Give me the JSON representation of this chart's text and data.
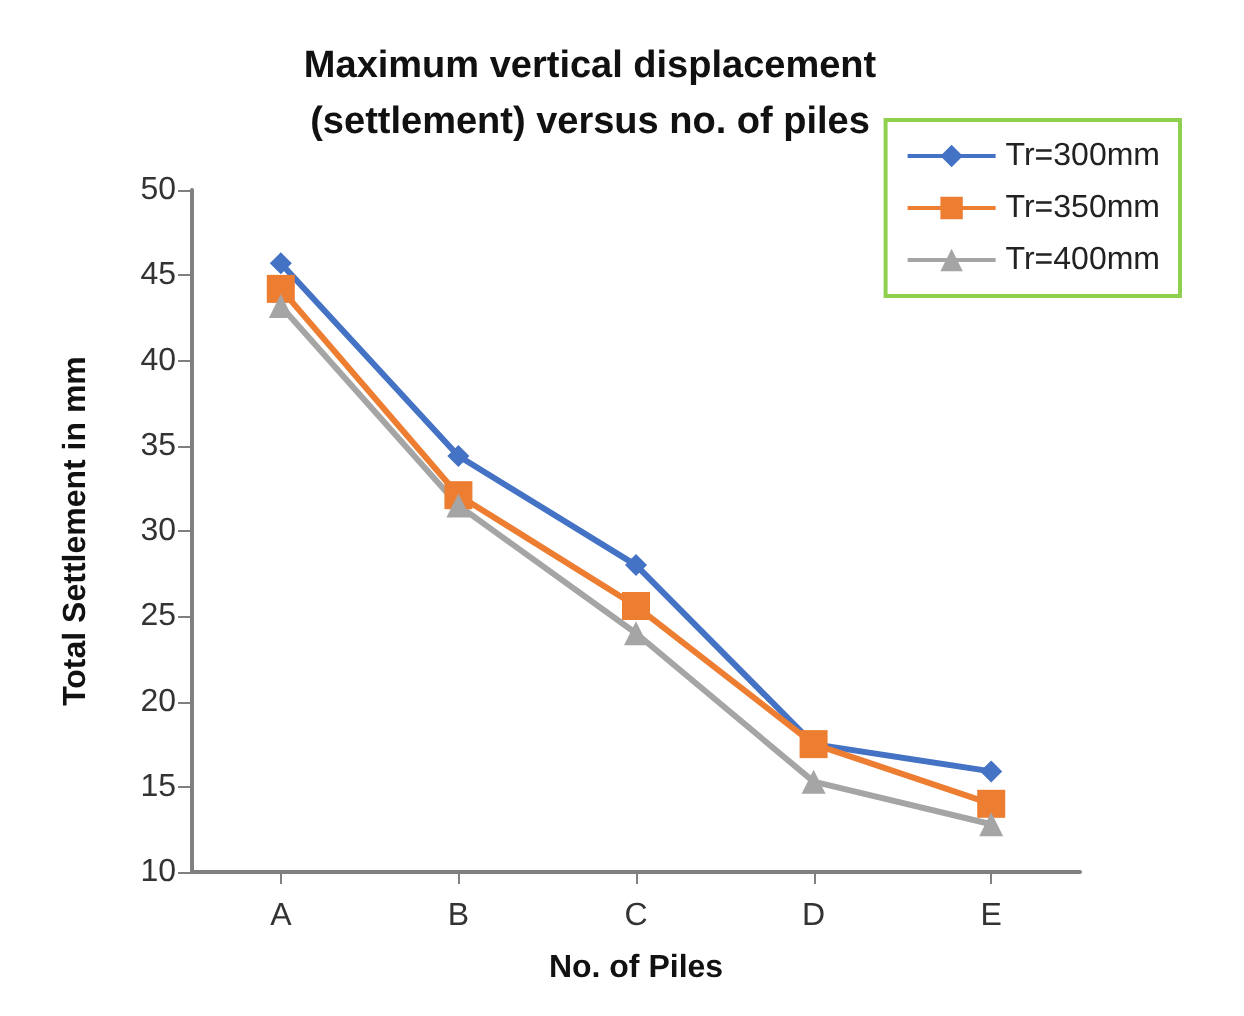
{
  "chart_data": {
    "type": "line",
    "title": "Maximum vertical displacement\n(settlement) versus no. of piles",
    "xlabel": "No. of Piles",
    "ylabel": "Total Settlement in mm",
    "categories": [
      "A",
      "B",
      "C",
      "D",
      "E"
    ],
    "series": [
      {
        "name": "Tr=300mm",
        "color": "#4472c4",
        "marker": "diamond",
        "values": [
          45.7,
          34.4,
          28.0,
          17.5,
          15.9
        ]
      },
      {
        "name": "Tr=350mm",
        "color": "#ed7d31",
        "marker": "square",
        "values": [
          44.2,
          32.1,
          25.6,
          17.5,
          14.0
        ]
      },
      {
        "name": "Tr=400mm",
        "color": "#a5a5a5",
        "marker": "triangle",
        "values": [
          43.2,
          31.5,
          24.0,
          15.3,
          12.8
        ]
      }
    ],
    "ylim": [
      10,
      50
    ],
    "yticks": [
      10,
      15,
      20,
      25,
      30,
      35,
      40,
      45,
      50
    ],
    "grid": false,
    "legend": "top right"
  }
}
